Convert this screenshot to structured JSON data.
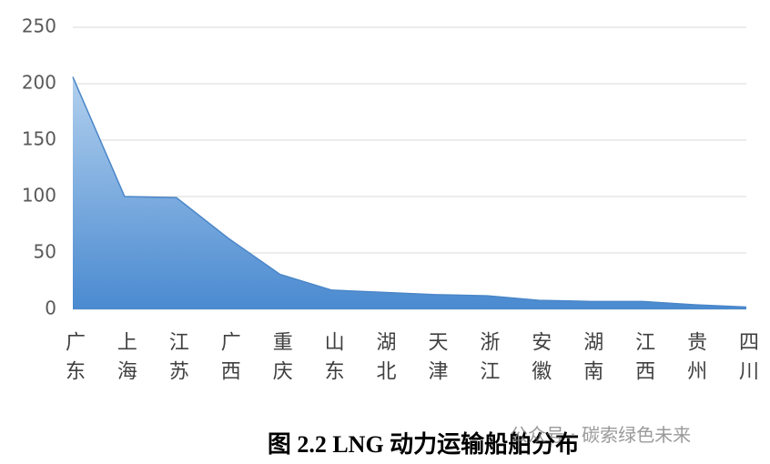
{
  "chart_data": {
    "type": "area",
    "categories": [
      "广东",
      "上海",
      "江苏",
      "广西",
      "重庆",
      "山东",
      "湖北",
      "天津",
      "浙江",
      "安徽",
      "湖南",
      "江西",
      "贵州",
      "四川"
    ],
    "values": [
      206,
      100,
      99,
      63,
      31,
      17,
      15,
      13,
      12,
      8,
      7,
      7,
      4,
      2
    ],
    "color": "#4a86c8",
    "ylim": [
      0,
      250
    ],
    "yticks": [
      0,
      50,
      100,
      150,
      200,
      250
    ],
    "grid": true,
    "caption": "图 2.2 LNG 动力运输船舶分布",
    "watermark": "公众号 · 碳索绿色未来"
  }
}
